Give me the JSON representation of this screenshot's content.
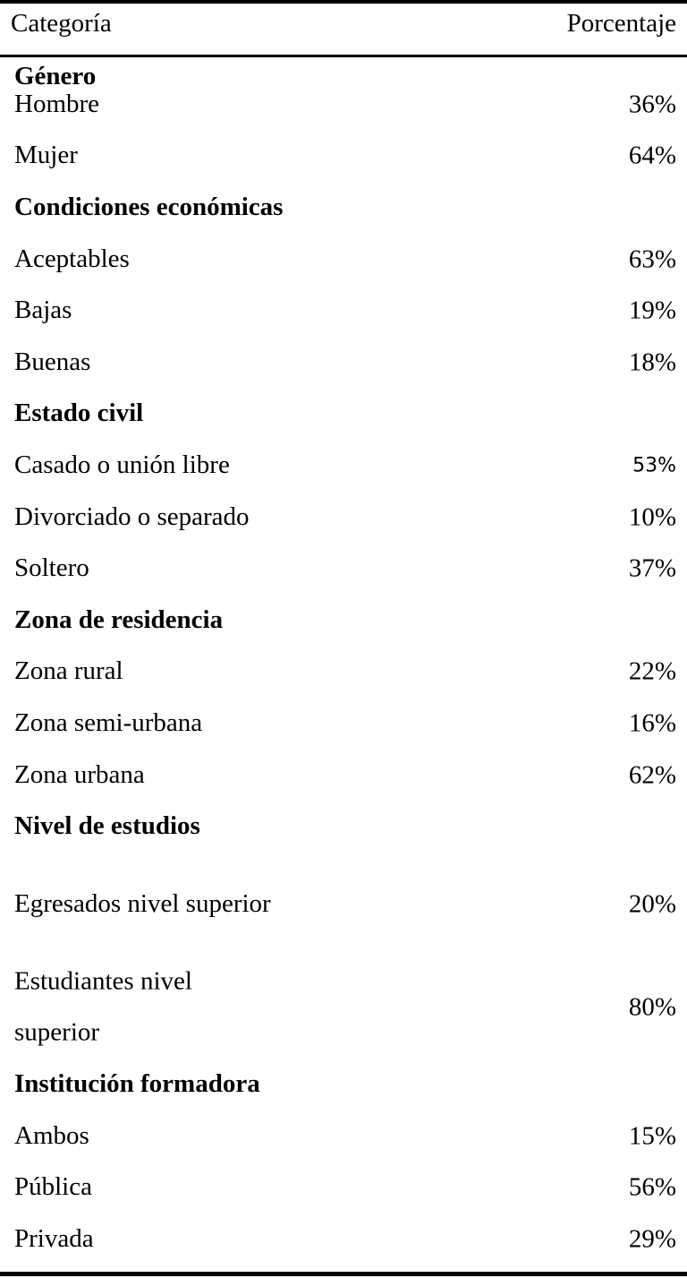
{
  "header": {
    "category": "Categoría",
    "percentage": "Porcentaje"
  },
  "groups": [
    {
      "title": "Género",
      "items": [
        {
          "label": "Hombre",
          "value": "36%"
        },
        {
          "label": "Mujer",
          "value": "64%"
        }
      ]
    },
    {
      "title": "Condiciones económicas",
      "items": [
        {
          "label": "Aceptables",
          "value": "63%"
        },
        {
          "label": "Bajas",
          "value": "19%"
        },
        {
          "label": "Buenas",
          "value": "18%"
        }
      ]
    },
    {
      "title": "Estado civil",
      "items": [
        {
          "label": "Casado o unión libre",
          "value": "53%"
        },
        {
          "label": "Divorciado o separado",
          "value": "10%"
        },
        {
          "label": "Soltero",
          "value": "37%"
        }
      ]
    },
    {
      "title": "Zona de residencia",
      "items": [
        {
          "label": "Zona rural",
          "value": "22%"
        },
        {
          "label": "Zona semi-urbana",
          "value": "16%"
        },
        {
          "label": "Zona urbana",
          "value": "62%"
        }
      ]
    },
    {
      "title": "Nivel de estudios",
      "items": [
        {
          "label": "Egresados nivel superior",
          "value": "20%"
        },
        {
          "label": "Estudiantes nivel superior",
          "value": "80%"
        }
      ]
    },
    {
      "title": "Institución formadora",
      "items": [
        {
          "label": "Ambos",
          "value": "15%"
        },
        {
          "label": "Pública",
          "value": "56%"
        },
        {
          "label": "Privada",
          "value": "29%"
        }
      ]
    }
  ]
}
